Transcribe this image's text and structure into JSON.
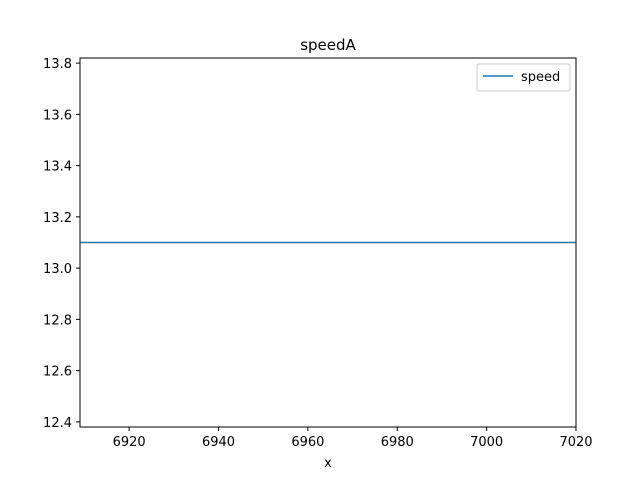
{
  "chart_data": {
    "type": "line",
    "title": "speedA",
    "xlabel": "x",
    "ylabel": "",
    "xlim": [
      6909,
      7020
    ],
    "ylim": [
      12.38,
      13.82
    ],
    "x_ticks": [
      6920,
      6940,
      6960,
      6980,
      7000,
      7020
    ],
    "y_ticks": [
      12.4,
      12.6,
      12.8,
      13.0,
      13.2,
      13.4,
      13.6,
      13.8
    ],
    "x_tick_labels": [
      "6920",
      "6940",
      "6960",
      "6980",
      "7000",
      "7020"
    ],
    "y_tick_labels": [
      "12.4",
      "12.6",
      "12.8",
      "13.0",
      "13.2",
      "13.4",
      "13.6",
      "13.8"
    ],
    "grid": false,
    "legend": {
      "placement": "top-right",
      "entries": [
        "speed"
      ]
    },
    "series": [
      {
        "name": "speed",
        "color": "#1f77b4",
        "x": [
          6909,
          7020
        ],
        "y": [
          13.1,
          13.1
        ]
      }
    ]
  }
}
